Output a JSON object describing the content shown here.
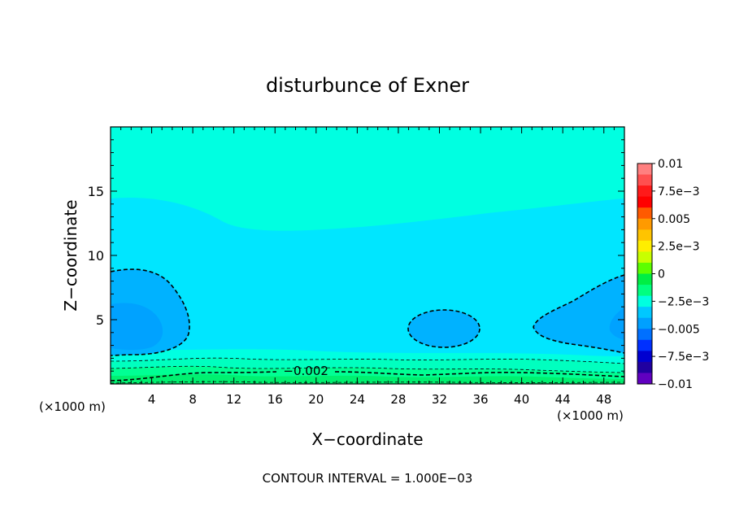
{
  "chart_data": {
    "type": "heatmap",
    "title": "disturbunce of Exner",
    "xlabel": "X−coordinate",
    "ylabel": "Z−coordinate",
    "x_unit": "(×1000 m)",
    "y_unit": "(×1000 m)",
    "xlim": [
      0,
      50
    ],
    "ylim": [
      0,
      20
    ],
    "x_ticks": [
      4,
      8,
      12,
      16,
      20,
      24,
      28,
      32,
      36,
      40,
      44,
      48
    ],
    "y_ticks": [
      5,
      10,
      15
    ],
    "contour_interval_text": "CONTOUR INTERVAL = 1.000E−03",
    "contour_labels": [
      {
        "text": "−0.002",
        "x": 19,
        "z": 1.0
      }
    ],
    "colorbar": {
      "range": [
        -0.01,
        0.01
      ],
      "labels": [
        "0.01",
        "7.5e−3",
        "0.005",
        "2.5e−3",
        "0",
        "−2.5e−3",
        "−0.005",
        "−7.5e−3",
        "−0.01"
      ],
      "colors": [
        "#ff8080",
        "#ff5050",
        "#ff1a1a",
        "#ff0000",
        "#ff5a00",
        "#ff9a00",
        "#ffc400",
        "#ffee00",
        "#c8ff00",
        "#5cff00",
        "#00ee44",
        "#00ff80",
        "#00ffe0",
        "#00c8ff",
        "#00a0ff",
        "#0070ff",
        "#0030ff",
        "#0000d0",
        "#2000a0",
        "#6000c0"
      ]
    },
    "field_colors": {
      "level_minus_0_0045": "#00a2ff",
      "level_minus_0_004": "#00b2ff",
      "level_minus_0_003": "#00e6ff",
      "level_minus_0_0025": "#00ffe1",
      "level_minus_0_002": "#00ffbf",
      "level_minus_0_0015": "#00ff94",
      "level_minus_0_001": "#00f070"
    }
  }
}
